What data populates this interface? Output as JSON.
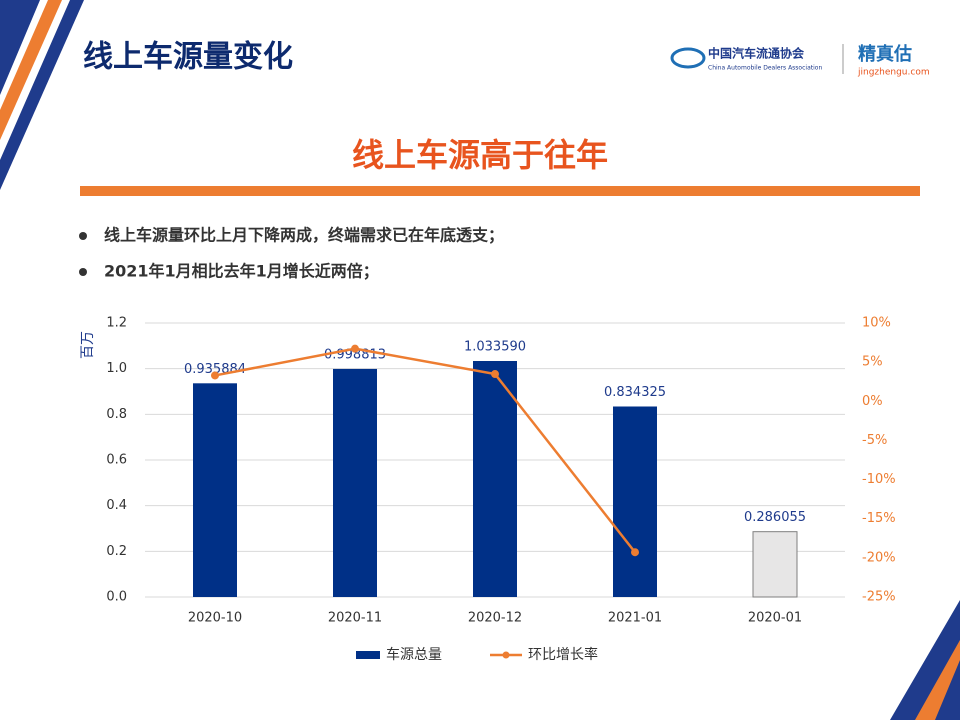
{
  "header": {
    "title": "线上车源量变化",
    "org_name": "中国汽车流通协会",
    "org_name_en": "China Automobile Dealers Association",
    "brand": "精真估",
    "brand_url": "jingzhengu.com"
  },
  "subtitle": "线上车源高于往年",
  "bullets": [
    "线上车源量环比上月下降两成，终端需求已在年底透支；",
    "2021年1月相比去年1月增长近两倍；"
  ],
  "chart_data": {
    "type": "bar-line",
    "y_label": "百万",
    "categories": [
      "2020-10",
      "2020-11",
      "2020-12",
      "2021-01",
      "2020-01"
    ],
    "series": [
      {
        "name": "车源总量",
        "type": "bar",
        "color": "#003087",
        "colors": [
          "#003087",
          "#003087",
          "#003087",
          "#003087",
          "#e7e6e6"
        ],
        "values": [
          0.935884,
          0.998813,
          1.03359,
          0.834325,
          0.286055
        ],
        "value_labels": [
          "0.935884",
          "0.998813",
          "1.033590",
          "0.834325",
          "0.286055"
        ]
      },
      {
        "name": "环比增长率",
        "type": "line",
        "axis": "y2",
        "color": "#ed7d31",
        "values": [
          3.3,
          6.72,
          3.48,
          -19.28,
          null
        ]
      }
    ],
    "ylim": [
      0,
      1.2
    ],
    "yticks": [
      {
        "value": 0,
        "label": "0.0"
      },
      0.2,
      0.4,
      0.6,
      0.8,
      {
        "value": 1,
        "label": "1.0"
      },
      1.2
    ],
    "y2lim": [
      -25,
      10
    ],
    "y2ticks": [
      {
        "value": -25,
        "label": "-25%"
      },
      {
        "value": -20,
        "label": "-20%"
      },
      {
        "value": -15,
        "label": "-15%"
      },
      {
        "value": -10,
        "label": "-10%"
      },
      {
        "value": -5,
        "label": "-5%"
      },
      {
        "value": 0,
        "label": "0%"
      },
      {
        "value": 5,
        "label": "5%"
      },
      {
        "value": 10,
        "label": "10%"
      }
    ],
    "grid": true,
    "legend": "bottom"
  }
}
